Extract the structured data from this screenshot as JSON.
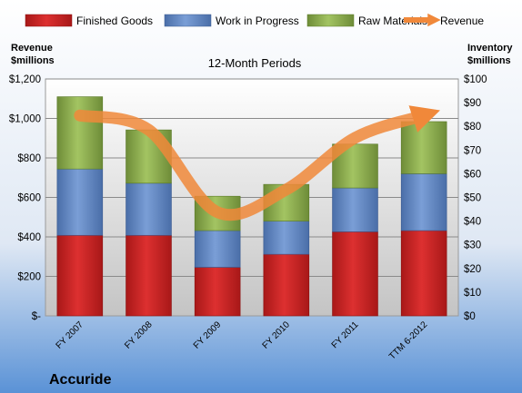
{
  "chart_data": {
    "type": "bar",
    "stacked": true,
    "title": "12-Month Periods",
    "company": "Accuride",
    "categories": [
      "FY 2007",
      "FY 2008",
      "FY 2009",
      "FY 2010",
      "FY 2011",
      "TTM 6-2012"
    ],
    "series": [
      {
        "name": "Finished Goods",
        "axis": "right",
        "color": "#cc2222",
        "values": [
          34,
          34,
          20.5,
          26,
          35.5,
          36
        ]
      },
      {
        "name": "Work in Progress",
        "axis": "right",
        "color": "#5a80c0",
        "values": [
          28,
          22,
          15.5,
          14,
          18.5,
          24
        ]
      },
      {
        "name": "Raw Materials",
        "axis": "right",
        "color": "#8fb050",
        "values": [
          30.5,
          22.5,
          14.5,
          15.5,
          18.5,
          22
        ]
      },
      {
        "name": "Revenue",
        "axis": "left",
        "type": "line",
        "color": "#f0883a",
        "values": [
          1015,
          942,
          525,
          640,
          902,
          1015
        ]
      }
    ],
    "left_axis": {
      "label_line1": "Revenue",
      "label_line2": "$millions",
      "ylim": [
        0,
        1200
      ],
      "ticks": [
        "$-",
        "$200",
        "$400",
        "$600",
        "$800",
        "$1,000",
        "$1,200"
      ]
    },
    "right_axis": {
      "label_line1": "Inventory",
      "label_line2": "$millions",
      "ylim": [
        0,
        100
      ],
      "ticks": [
        "$0",
        "$10",
        "$20",
        "$30",
        "$40",
        "$50",
        "$60",
        "$70",
        "$80",
        "$90",
        "$100"
      ]
    },
    "grid": true,
    "legend_position": "top"
  }
}
